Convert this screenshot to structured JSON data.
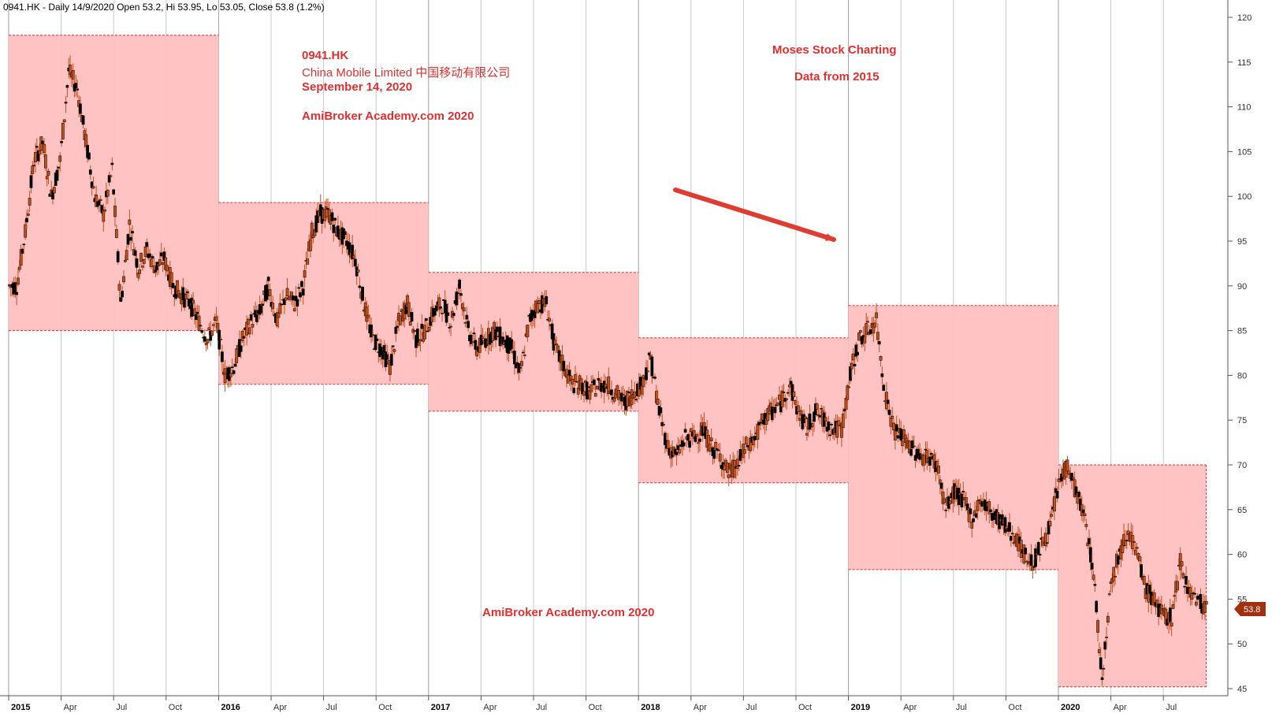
{
  "header": {
    "title": "0941.HK - Daily 14/9/2020 Open 53.2, Hi 53.95, Lo 53.05, Close 53.8 (1.2%)"
  },
  "annotations": {
    "ticker": "0941.HK",
    "company": "China Mobile Limited 中国移动有限公司",
    "date": "September 14, 2020",
    "watermark_top": "AmiBroker Academy.com  2020",
    "moses": "Moses Stock Charting",
    "data_from": "Data from 2015",
    "watermark_bottom": "AmiBroker Academy.com  2020"
  },
  "last_price_label": "53.8",
  "colors": {
    "box_fill": "#ffc0c0",
    "box_border": "#e03030",
    "candle": "#000000",
    "candle_edge": "#c0501e",
    "arrow": "#e03c32",
    "badge": "#a03010",
    "grid": "#c8c8c8",
    "text_red": "#e03030"
  },
  "chart_data": {
    "type": "line",
    "style": "candlestick",
    "ylim": [
      44,
      122
    ],
    "yticks": [
      45,
      50,
      55,
      60,
      65,
      70,
      75,
      80,
      85,
      90,
      95,
      100,
      105,
      110,
      115,
      120
    ],
    "grid": true,
    "xticks": [
      {
        "label": "2015",
        "year": true,
        "date": "2015-01"
      },
      {
        "label": "Apr",
        "year": false,
        "date": "2015-04"
      },
      {
        "label": "Jul",
        "year": false,
        "date": "2015-07"
      },
      {
        "label": "Oct",
        "year": false,
        "date": "2015-10"
      },
      {
        "label": "2016",
        "year": true,
        "date": "2016-01"
      },
      {
        "label": "Apr",
        "year": false,
        "date": "2016-04"
      },
      {
        "label": "Jul",
        "year": false,
        "date": "2016-07"
      },
      {
        "label": "Oct",
        "year": false,
        "date": "2016-10"
      },
      {
        "label": "2017",
        "year": true,
        "date": "2017-01"
      },
      {
        "label": "Apr",
        "year": false,
        "date": "2017-04"
      },
      {
        "label": "Jul",
        "year": false,
        "date": "2017-07"
      },
      {
        "label": "Oct",
        "year": false,
        "date": "2017-10"
      },
      {
        "label": "2018",
        "year": true,
        "date": "2018-01"
      },
      {
        "label": "Apr",
        "year": false,
        "date": "2018-04"
      },
      {
        "label": "Jul",
        "year": false,
        "date": "2018-07"
      },
      {
        "label": "Oct",
        "year": false,
        "date": "2018-10"
      },
      {
        "label": "2019",
        "year": true,
        "date": "2019-01"
      },
      {
        "label": "Apr",
        "year": false,
        "date": "2019-04"
      },
      {
        "label": "Jul",
        "year": false,
        "date": "2019-07"
      },
      {
        "label": "Oct",
        "year": false,
        "date": "2019-10"
      },
      {
        "label": "2020",
        "year": true,
        "date": "2020-01"
      },
      {
        "label": "Apr",
        "year": false,
        "date": "2020-04"
      },
      {
        "label": "Jul",
        "year": false,
        "date": "2020-07"
      }
    ],
    "yearly_boxes": [
      {
        "year": "2015",
        "low": 85,
        "high": 118
      },
      {
        "year": "2016",
        "low": 79,
        "high": 99.3
      },
      {
        "year": "2017",
        "low": 76,
        "high": 91.5
      },
      {
        "year": "2018",
        "low": 68,
        "high": 84.2
      },
      {
        "year": "2019",
        "low": 58.3,
        "high": 87.8
      },
      {
        "year": "2020",
        "low": 45.2,
        "high": 70
      }
    ],
    "x": [
      "2015-01",
      "2015-01",
      "2015-02",
      "2015-02",
      "2015-03",
      "2015-03",
      "2015-04",
      "2015-04",
      "2015-05",
      "2015-05",
      "2015-06",
      "2015-06",
      "2015-07",
      "2015-07",
      "2015-08",
      "2015-08",
      "2015-09",
      "2015-09",
      "2015-10",
      "2015-10",
      "2015-11",
      "2015-11",
      "2015-12",
      "2015-12",
      "2016-01",
      "2016-01",
      "2016-02",
      "2016-02",
      "2016-03",
      "2016-03",
      "2016-04",
      "2016-04",
      "2016-05",
      "2016-05",
      "2016-06",
      "2016-06",
      "2016-07",
      "2016-07",
      "2016-08",
      "2016-08",
      "2016-09",
      "2016-09",
      "2016-10",
      "2016-10",
      "2016-11",
      "2016-11",
      "2016-12",
      "2016-12",
      "2017-01",
      "2017-01",
      "2017-02",
      "2017-02",
      "2017-03",
      "2017-03",
      "2017-04",
      "2017-04",
      "2017-05",
      "2017-05",
      "2017-06",
      "2017-06",
      "2017-07",
      "2017-07",
      "2017-08",
      "2017-08",
      "2017-09",
      "2017-09",
      "2017-10",
      "2017-10",
      "2017-11",
      "2017-11",
      "2017-12",
      "2017-12",
      "2018-01",
      "2018-01",
      "2018-02",
      "2018-02",
      "2018-03",
      "2018-03",
      "2018-04",
      "2018-04",
      "2018-05",
      "2018-05",
      "2018-06",
      "2018-06",
      "2018-07",
      "2018-07",
      "2018-08",
      "2018-08",
      "2018-09",
      "2018-09",
      "2018-10",
      "2018-10",
      "2018-11",
      "2018-11",
      "2018-12",
      "2018-12",
      "2019-01",
      "2019-01",
      "2019-02",
      "2019-02",
      "2019-03",
      "2019-03",
      "2019-04",
      "2019-04",
      "2019-05",
      "2019-05",
      "2019-06",
      "2019-06",
      "2019-07",
      "2019-07",
      "2019-08",
      "2019-08",
      "2019-09",
      "2019-09",
      "2019-10",
      "2019-10",
      "2019-11",
      "2019-11",
      "2019-12",
      "2019-12",
      "2020-01",
      "2020-01",
      "2020-02",
      "2020-02",
      "2020-03",
      "2020-03",
      "2020-04",
      "2020-04",
      "2020-05",
      "2020-05",
      "2020-06",
      "2020-06",
      "2020-07",
      "2020-07",
      "2020-08",
      "2020-08",
      "2020-09",
      "2020-09"
    ],
    "close": [
      90,
      96,
      104,
      106,
      100,
      104,
      114,
      112,
      106,
      100,
      98,
      103,
      88,
      97,
      92,
      94,
      92,
      93,
      90,
      89,
      88,
      86,
      84,
      86,
      80,
      81,
      84,
      86,
      87,
      90,
      86,
      89,
      88,
      90,
      96,
      98,
      98,
      96,
      95,
      93,
      88,
      84,
      83,
      81,
      86,
      88,
      84,
      85,
      87,
      88,
      86,
      90,
      85,
      83,
      84,
      85,
      84,
      83,
      80,
      86,
      88,
      88,
      83,
      81,
      79,
      79,
      78,
      79,
      79,
      78,
      77,
      78,
      79,
      82,
      76,
      72,
      71,
      73,
      73,
      74,
      72,
      71,
      69,
      70,
      72,
      73,
      75,
      76,
      77,
      79,
      76,
      74,
      76,
      75,
      74,
      74,
      80,
      84,
      85,
      86,
      78,
      74,
      73,
      72,
      71,
      71,
      70,
      65,
      67,
      66,
      64,
      66,
      65,
      64,
      63,
      62,
      60,
      59,
      61,
      63,
      68,
      70,
      67,
      64,
      58,
      46,
      57,
      60,
      63,
      60,
      56,
      55,
      53,
      53,
      59,
      56,
      55,
      54
    ]
  }
}
